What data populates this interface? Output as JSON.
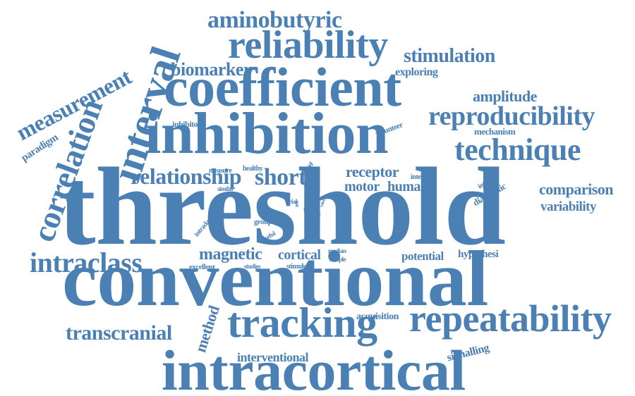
{
  "color": "#4a80b4",
  "words": [
    {
      "text": "threshold"
    },
    {
      "text": "conventional"
    },
    {
      "text": "intracortical"
    },
    {
      "text": "inhibition"
    },
    {
      "text": "coefficient"
    },
    {
      "text": "tracking"
    },
    {
      "text": "repeatability"
    },
    {
      "text": "interval"
    },
    {
      "text": "reliability"
    },
    {
      "text": "correlation"
    },
    {
      "text": "measurement"
    },
    {
      "text": "reproducibility"
    },
    {
      "text": "technique"
    },
    {
      "text": "intraclass"
    },
    {
      "text": "transcranial"
    },
    {
      "text": "aminobutyric"
    },
    {
      "text": "relationship"
    },
    {
      "text": "short"
    },
    {
      "text": "stimulation"
    },
    {
      "text": "biomarker"
    },
    {
      "text": "magnetic"
    },
    {
      "text": "cortical"
    },
    {
      "text": "amplitude"
    },
    {
      "text": "comparison"
    },
    {
      "text": "variability"
    },
    {
      "text": "method"
    },
    {
      "text": "receptor"
    },
    {
      "text": "motor"
    },
    {
      "text": "human"
    },
    {
      "text": "interventional"
    },
    {
      "text": "exploring"
    },
    {
      "text": "potential"
    },
    {
      "text": "hypothesi"
    },
    {
      "text": "signalling"
    },
    {
      "text": "acquisition"
    },
    {
      "text": "paradigm"
    },
    {
      "text": "mechanism"
    },
    {
      "text": "diagnostic"
    },
    {
      "text": "inhibitory"
    },
    {
      "text": "volunteer"
    },
    {
      "text": "intensity"
    },
    {
      "text": "interday"
    },
    {
      "text": "measure"
    },
    {
      "text": "healthy"
    },
    {
      "text": "novel"
    },
    {
      "text": "similar"
    },
    {
      "text": "intraday"
    },
    {
      "text": "useful"
    },
    {
      "text": "group"
    },
    {
      "text": "trial"
    },
    {
      "text": "test"
    },
    {
      "text": "time"
    },
    {
      "text": "dose"
    },
    {
      "text": "range"
    },
    {
      "text": "value"
    },
    {
      "text": "excellent"
    },
    {
      "text": "studies"
    },
    {
      "text": "stimulus"
    },
    {
      "text": "median"
    },
    {
      "text": "sample"
    }
  ]
}
